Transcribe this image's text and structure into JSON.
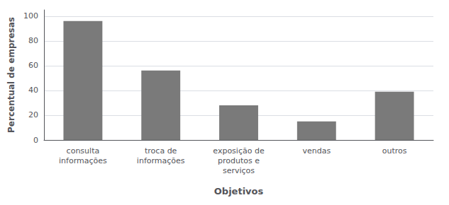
{
  "chart_data": {
    "type": "bar",
    "categories": [
      "consulta\ninformações",
      "troca de\ninformações",
      "exposição de\nprodutos e\nserviços",
      "vendas",
      "outros"
    ],
    "values": [
      96,
      56,
      28,
      15,
      39
    ],
    "color": "#7a7a7a",
    "xlabel": "Objetivos",
    "ylabel": "Percentual de empresas",
    "ylim": [
      0,
      105
    ],
    "yticks": [
      0,
      20,
      40,
      60,
      80,
      100
    ],
    "grid": true
  }
}
